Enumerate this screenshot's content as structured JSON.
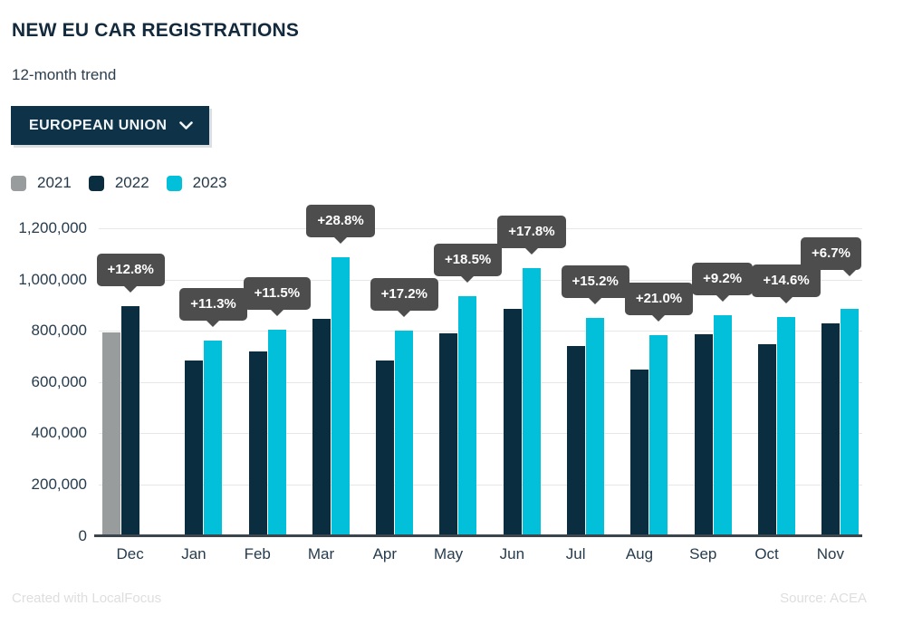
{
  "header": {
    "title": "NEW EU CAR REGISTRATIONS",
    "subtitle": "12-month trend",
    "region_selector": {
      "label": "EUROPEAN UNION",
      "icon": "chevron-down-icon"
    }
  },
  "chart_data": {
    "type": "bar",
    "title": "NEW EU CAR REGISTRATIONS",
    "subtitle": "12-month trend",
    "categories": [
      "Dec",
      "Jan",
      "Feb",
      "Mar",
      "Apr",
      "May",
      "Jun",
      "Jul",
      "Aug",
      "Sep",
      "Oct",
      "Nov"
    ],
    "series": [
      {
        "name": "2021",
        "color": "#989c9d",
        "values": [
          795000,
          null,
          null,
          null,
          null,
          null,
          null,
          null,
          null,
          null,
          null,
          null
        ]
      },
      {
        "name": "2022",
        "color": "#0b2d40",
        "values": [
          896000,
          683000,
          720000,
          845000,
          683000,
          790000,
          885000,
          739000,
          648000,
          788000,
          746000,
          830000
        ]
      },
      {
        "name": "2023",
        "color": "#02c0da",
        "values": [
          null,
          760000,
          803000,
          1088000,
          800000,
          936000,
          1043000,
          851000,
          784000,
          861000,
          855000,
          886000
        ]
      }
    ],
    "bar_labels": [
      "+12.8%",
      "+11.3%",
      "+11.5%",
      "+28.8%",
      "+17.2%",
      "+18.5%",
      "+17.8%",
      "+15.2%",
      "+21.0%",
      "+9.2%",
      "+14.6%",
      "+6.7%"
    ],
    "xlabel": "",
    "ylabel": "",
    "ylim": [
      0,
      1200000
    ],
    "yticks": [
      0,
      200000,
      400000,
      600000,
      800000,
      1000000,
      1200000
    ],
    "ytick_labels": [
      "0",
      "200,000",
      "400,000",
      "600,000",
      "800,000",
      "1,000,000",
      "1,200,000"
    ],
    "grid": "horizontal",
    "legend_position": "top-left",
    "label_style": "dark-tooltip-above-bar"
  },
  "footer": {
    "credit": "Created with LocalFocus",
    "source": "Source: ACEA"
  },
  "colors": {
    "title_text": "#13293c",
    "axis_text": "#263c4e",
    "grid_line": "#e7e7e7",
    "axis_line": "#3a454d",
    "tooltip_bg": "#4d4d4d",
    "tooltip_text": "#ffffff",
    "button_bg": "#0e3349",
    "button_text": "#f2f6f8",
    "background": "#ffffff",
    "footer_text": "#dedede"
  }
}
